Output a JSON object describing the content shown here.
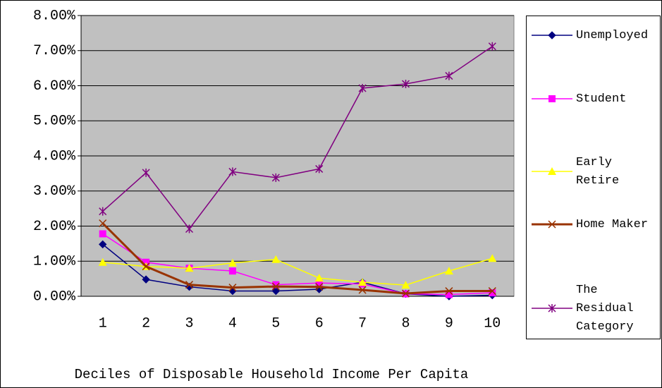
{
  "chart_data": {
    "type": "line",
    "x_label": "Deciles of Disposable Household Income Per Capita",
    "categories": [
      "1",
      "2",
      "3",
      "4",
      "5",
      "6",
      "7",
      "8",
      "9",
      "10"
    ],
    "series": [
      {
        "name": "Unemployed",
        "color": "#000080",
        "marker": "diamond",
        "values": [
          1.48,
          0.48,
          0.27,
          0.15,
          0.15,
          0.2,
          0.4,
          0.07,
          0.0,
          0.03
        ]
      },
      {
        "name": "Student",
        "color": "#ff00ff",
        "marker": "square",
        "values": [
          1.78,
          0.97,
          0.8,
          0.72,
          0.33,
          0.38,
          0.35,
          0.07,
          0.05,
          0.1
        ]
      },
      {
        "name": "Early Retire",
        "color": "#ffff00",
        "marker": "triangle",
        "values": [
          0.97,
          0.85,
          0.8,
          0.95,
          1.05,
          0.52,
          0.4,
          0.32,
          0.72,
          1.08
        ]
      },
      {
        "name": "Home Maker",
        "color": "#993300",
        "marker": "x",
        "values": [
          2.08,
          0.85,
          0.33,
          0.25,
          0.28,
          0.27,
          0.18,
          0.08,
          0.15,
          0.15
        ]
      },
      {
        "name": "The Residual Category",
        "color": "#800080",
        "marker": "star",
        "values": [
          2.42,
          3.52,
          1.92,
          3.55,
          3.38,
          3.63,
          5.93,
          6.05,
          6.28,
          7.12
        ]
      }
    ],
    "ylim": [
      0,
      8
    ],
    "yticks": [
      {
        "value": 0,
        "label": "0.00%"
      },
      {
        "value": 1,
        "label": "1.00%"
      },
      {
        "value": 2,
        "label": "2.00%"
      },
      {
        "value": 3,
        "label": "3.00%"
      },
      {
        "value": 4,
        "label": "4.00%"
      },
      {
        "value": 5,
        "label": "5.00%"
      },
      {
        "value": 6,
        "label": "6.00%"
      },
      {
        "value": 7,
        "label": "7.00%"
      },
      {
        "value": 8,
        "label": "8.00%"
      }
    ],
    "grid": true,
    "plot_background": "#c0c0c0",
    "legend": "right"
  }
}
